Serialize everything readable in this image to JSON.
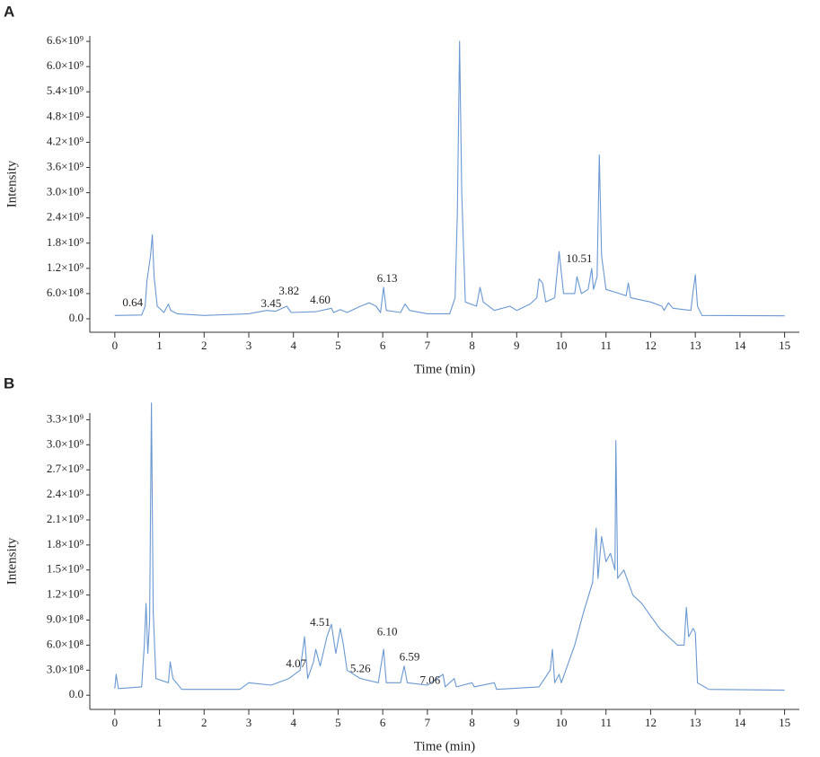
{
  "chart_data": [
    {
      "type": "line",
      "panel_label": "A",
      "x_label": "Time (min)",
      "y_label": "Intensity",
      "xlim": [
        -0.56,
        15.33
      ],
      "ylim": [
        -320000000.0,
        6730000000.0
      ],
      "xticks": [
        0,
        1,
        2,
        3,
        4,
        5,
        6,
        7,
        8,
        9,
        10,
        11,
        12,
        13,
        14,
        15
      ],
      "yticks": [
        {
          "value": 0,
          "label": "0.0"
        },
        {
          "value": 600000000.0,
          "label": "6.0×10⁸"
        },
        {
          "value": 1200000000.0,
          "label": "1.2×10⁹"
        },
        {
          "value": 1800000000.0,
          "label": "1.8×10⁹"
        },
        {
          "value": 2400000000.0,
          "label": "2.4×10⁹"
        },
        {
          "value": 3000000000.0,
          "label": "3.0×10⁹"
        },
        {
          "value": 3600000000.0,
          "label": "3.6×10⁹"
        },
        {
          "value": 4200000000.0,
          "label": "4.2×10⁹"
        },
        {
          "value": 4800000000.0,
          "label": "4.8×10⁹"
        },
        {
          "value": 5400000000.0,
          "label": "5.4×10⁹"
        },
        {
          "value": 6000000000.0,
          "label": "6.0×10⁹"
        },
        {
          "value": 6600000000.0,
          "label": "6.6×10⁹"
        }
      ],
      "color": "#6a98d2",
      "x": [
        0,
        0.6,
        0.68,
        0.72,
        0.76,
        0.8,
        0.84,
        0.88,
        0.95,
        1.1,
        1.2,
        1.25,
        1.4,
        2,
        3,
        3.4,
        3.6,
        3.85,
        3.95,
        4.5,
        4.85,
        4.9,
        5.05,
        5.2,
        5.5,
        5.7,
        5.85,
        5.95,
        6.02,
        6.08,
        6.4,
        6.5,
        6.6,
        7.0,
        7.5,
        7.62,
        7.67,
        7.72,
        7.77,
        7.85,
        8.1,
        8.18,
        8.25,
        8.5,
        8.85,
        9.0,
        9.3,
        9.45,
        9.5,
        9.58,
        9.65,
        9.85,
        9.95,
        10.05,
        10.3,
        10.35,
        10.45,
        10.6,
        10.68,
        10.72,
        10.8,
        10.85,
        10.9,
        11.0,
        11.3,
        11.45,
        11.5,
        11.55,
        12.0,
        12.25,
        12.3,
        12.4,
        12.5,
        12.9,
        12.95,
        13.0,
        13.05,
        13.15,
        15
      ],
      "values": [
        80000000.0,
        90000000.0,
        300000000.0,
        900000000.0,
        1200000000.0,
        1500000000.0,
        2000000000.0,
        1000000000.0,
        300000000.0,
        150000000.0,
        350000000.0,
        200000000.0,
        120000000.0,
        80000000.0,
        120000000.0,
        200000000.0,
        180000000.0,
        300000000.0,
        150000000.0,
        170000000.0,
        250000000.0,
        150000000.0,
        220000000.0,
        150000000.0,
        300000000.0,
        380000000.0,
        300000000.0,
        150000000.0,
        750000000.0,
        200000000.0,
        150000000.0,
        350000000.0,
        200000000.0,
        120000000.0,
        120000000.0,
        500000000.0,
        2500000000.0,
        6600000000.0,
        3000000000.0,
        400000000.0,
        300000000.0,
        750000000.0,
        400000000.0,
        200000000.0,
        300000000.0,
        200000000.0,
        350000000.0,
        500000000.0,
        950000000.0,
        850000000.0,
        400000000.0,
        500000000.0,
        1600000000.0,
        600000000.0,
        600000000.0,
        1000000000.0,
        600000000.0,
        700000000.0,
        1200000000.0,
        700000000.0,
        1000000000.0,
        3900000000.0,
        1500000000.0,
        700000000.0,
        600000000.0,
        550000000.0,
        850000000.0,
        500000000.0,
        400000000.0,
        300000000.0,
        200000000.0,
        380000000.0,
        250000000.0,
        200000000.0,
        650000000.0,
        1050000000.0,
        300000000.0,
        80000000.0,
        70000000.0
      ],
      "annotations": [
        {
          "text": "0.64",
          "x": 0.4,
          "y": 360000000.0
        },
        {
          "text": "3.45",
          "x": 3.5,
          "y": 340000000.0
        },
        {
          "text": "3.82",
          "x": 3.9,
          "y": 640000000.0
        },
        {
          "text": "4.60",
          "x": 4.6,
          "y": 430000000.0
        },
        {
          "text": "6.13",
          "x": 6.1,
          "y": 940000000.0
        },
        {
          "text": "10.51",
          "x": 10.4,
          "y": 1410000000.0
        }
      ]
    },
    {
      "type": "line",
      "panel_label": "B",
      "x_label": "Time (min)",
      "y_label": "Intensity",
      "xlim": [
        -0.56,
        15.33
      ],
      "ylim": [
        -170000000.0,
        3380000000.0
      ],
      "xticks": [
        0,
        1,
        2,
        3,
        4,
        5,
        6,
        7,
        8,
        9,
        10,
        11,
        12,
        13,
        14,
        15
      ],
      "yticks": [
        {
          "value": 0,
          "label": "0.0"
        },
        {
          "value": 300000000.0,
          "label": "3.0×10⁸"
        },
        {
          "value": 600000000.0,
          "label": "6.0×10⁸"
        },
        {
          "value": 900000000.0,
          "label": "9.0×10⁸"
        },
        {
          "value": 1200000000.0,
          "label": "1.2×10⁹"
        },
        {
          "value": 1500000000.0,
          "label": "1.5×10⁹"
        },
        {
          "value": 1800000000.0,
          "label": "1.8×10⁹"
        },
        {
          "value": 2100000000.0,
          "label": "2.1×10⁹"
        },
        {
          "value": 2400000000.0,
          "label": "2.4×10⁹"
        },
        {
          "value": 2700000000.0,
          "label": "2.7×10⁹"
        },
        {
          "value": 3000000000.0,
          "label": "3.0×10⁹"
        },
        {
          "value": 3300000000.0,
          "label": "3.3×10⁹"
        }
      ],
      "color": "#6a98d2",
      "x": [
        0,
        0.03,
        0.08,
        0.6,
        0.66,
        0.7,
        0.74,
        0.78,
        0.82,
        0.86,
        0.92,
        1.2,
        1.24,
        1.3,
        1.5,
        2.8,
        3.0,
        3.5,
        3.9,
        4.15,
        4.25,
        4.32,
        4.45,
        4.5,
        4.6,
        4.75,
        4.85,
        4.95,
        5.05,
        5.12,
        5.2,
        5.5,
        5.9,
        6.02,
        6.08,
        6.4,
        6.48,
        6.55,
        7.0,
        7.35,
        7.4,
        7.6,
        7.65,
        8.0,
        8.05,
        8.5,
        8.55,
        9.5,
        9.75,
        9.8,
        9.85,
        9.95,
        10.0,
        10.3,
        10.5,
        10.7,
        10.78,
        10.82,
        10.9,
        11.0,
        11.1,
        11.2,
        11.22,
        11.26,
        11.4,
        11.6,
        11.8,
        12.0,
        12.2,
        12.4,
        12.6,
        12.75,
        12.8,
        12.85,
        12.95,
        13.0,
        13.05,
        13.3,
        15
      ],
      "values": [
        80000000.0,
        250000000.0,
        80000000.0,
        100000000.0,
        600000000.0,
        1100000000.0,
        500000000.0,
        900000000.0,
        3500000000.0,
        1000000000.0,
        200000000.0,
        150000000.0,
        400000000.0,
        200000000.0,
        70000000.0,
        70000000.0,
        150000000.0,
        120000000.0,
        200000000.0,
        300000000.0,
        700000000.0,
        200000000.0,
        400000000.0,
        550000000.0,
        350000000.0,
        700000000.0,
        850000000.0,
        500000000.0,
        800000000.0,
        600000000.0,
        300000000.0,
        200000000.0,
        150000000.0,
        550000000.0,
        150000000.0,
        150000000.0,
        350000000.0,
        150000000.0,
        120000000.0,
        250000000.0,
        100000000.0,
        200000000.0,
        100000000.0,
        150000000.0,
        100000000.0,
        150000000.0,
        70000000.0,
        100000000.0,
        300000000.0,
        550000000.0,
        150000000.0,
        250000000.0,
        150000000.0,
        600000000.0,
        1000000000.0,
        1350000000.0,
        2000000000.0,
        1400000000.0,
        1900000000.0,
        1600000000.0,
        1700000000.0,
        1500000000.0,
        3050000000.0,
        1400000000.0,
        1500000000.0,
        1200000000.0,
        1100000000.0,
        950000000.0,
        800000000.0,
        700000000.0,
        600000000.0,
        600000000.0,
        1050000000.0,
        700000000.0,
        800000000.0,
        750000000.0,
        150000000.0,
        70000000.0,
        60000000.0
      ],
      "annotations": [
        {
          "text": "4.07",
          "x": 4.06,
          "y": 370000000.0
        },
        {
          "text": "4.51",
          "x": 4.6,
          "y": 860000000.0
        },
        {
          "text": "5.26",
          "x": 5.5,
          "y": 310000000.0
        },
        {
          "text": "6.10",
          "x": 6.1,
          "y": 750000000.0
        },
        {
          "text": "6.59",
          "x": 6.6,
          "y": 450000000.0
        },
        {
          "text": "7.06",
          "x": 7.06,
          "y": 170000000.0
        }
      ]
    }
  ]
}
